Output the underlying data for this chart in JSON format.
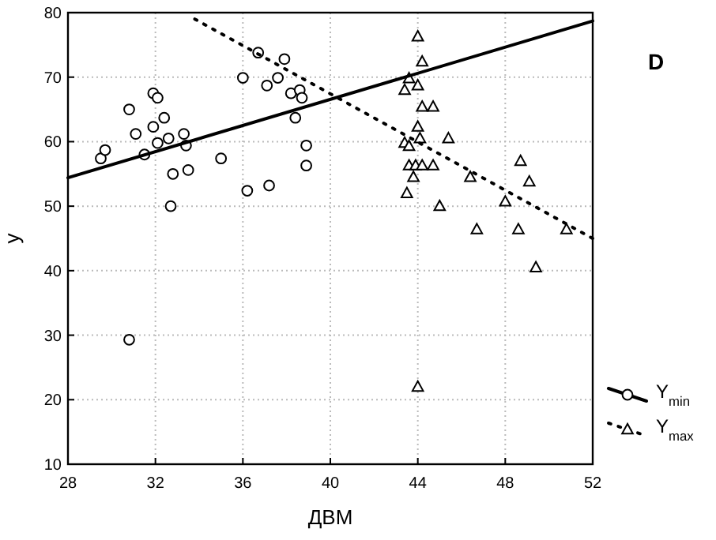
{
  "chart_data": {
    "type": "scatter",
    "xlabel": "ДВМ",
    "ylabel": "y",
    "annotations": [
      "D"
    ],
    "xlim": [
      28,
      52
    ],
    "ylim": [
      10,
      80
    ],
    "xticks": [
      28,
      32,
      36,
      40,
      44,
      48,
      52
    ],
    "yticks": [
      10,
      20,
      30,
      40,
      50,
      60,
      70,
      80
    ],
    "grid": true,
    "legend": "right",
    "series": [
      {
        "name": "Y$_{min}$",
        "color": "#000000",
        "marker": "circle",
        "x": [
          29.5,
          29.7,
          30.8,
          31.1,
          31.5,
          31.9,
          32.1,
          31.9,
          32.1,
          32.4,
          32.6,
          32.8,
          32.7,
          33.3,
          33.4,
          33.5,
          35.0,
          36.0,
          36.2,
          36.7,
          37.1,
          37.2,
          37.6,
          37.9,
          38.2,
          38.6,
          38.7,
          38.4,
          38.9,
          38.9,
          30.8
        ],
        "values": [
          57.4,
          58.7,
          65.0,
          61.2,
          58.0,
          67.5,
          66.8,
          62.3,
          59.8,
          63.7,
          60.5,
          55.0,
          50.0,
          61.2,
          59.4,
          55.6,
          57.4,
          69.9,
          52.4,
          73.8,
          68.7,
          53.2,
          69.9,
          72.8,
          67.5,
          68.0,
          66.8,
          63.7,
          59.4,
          56.3,
          29.3
        ]
      },
      {
        "name": "Y$_{max}$",
        "color": "#000000",
        "marker": "triangle",
        "x": [
          44.0,
          44.2,
          43.6,
          44.0,
          43.4,
          44.2,
          44.7,
          44.0,
          44.1,
          43.4,
          43.6,
          45.4,
          43.6,
          43.9,
          44.2,
          44.7,
          43.8,
          43.5,
          45.0,
          46.4,
          48.7,
          49.1,
          48.0,
          46.7,
          48.6,
          49.4,
          44.0,
          50.8
        ],
        "values": [
          76.3,
          72.4,
          69.8,
          68.7,
          68.0,
          65.4,
          65.4,
          62.3,
          60.5,
          59.8,
          59.3,
          60.5,
          56.3,
          56.3,
          56.3,
          56.3,
          54.5,
          52.0,
          50.0,
          54.5,
          57.0,
          53.8,
          50.7,
          46.4,
          46.4,
          40.5,
          22.0,
          46.4
        ]
      },
      {
        "type": "line",
        "color": "#000000",
        "line_style": "solid",
        "x": [
          28,
          52
        ],
        "values": [
          54.4,
          78.7
        ]
      },
      {
        "type": "line",
        "color": "#000000",
        "line_style": "dotted",
        "x": [
          33.8,
          52
        ],
        "values": [
          79,
          45
        ]
      }
    ]
  }
}
